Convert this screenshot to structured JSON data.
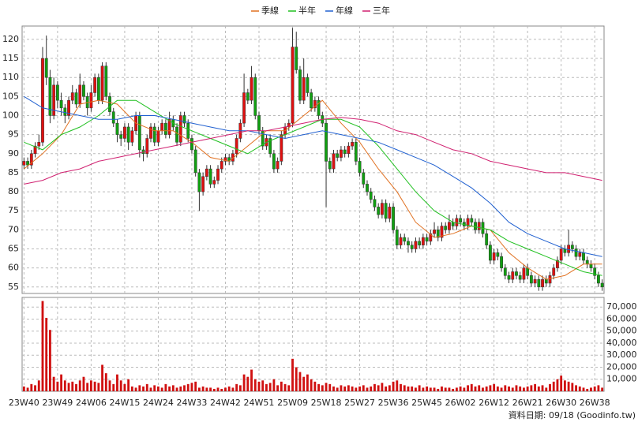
{
  "chart_data": {
    "type": "candlestick",
    "legend_position": "top",
    "grid": true,
    "footer": "資料日期: 09/18 (Goodinfo.tw)",
    "up_color": "#e01010",
    "down_color": "#10a010",
    "volume_color": "#d01010",
    "ylim": [
      53.3,
      123.5
    ],
    "yticks": [
      55,
      60,
      65,
      70,
      75,
      80,
      85,
      90,
      95,
      100,
      105,
      110,
      115,
      120
    ],
    "volume_ylim": [
      0,
      78000
    ],
    "volume_yticks": [
      {
        "value": 10000,
        "label": "10,000"
      },
      {
        "value": 20000,
        "label": "20,000"
      },
      {
        "value": 30000,
        "label": "30,000"
      },
      {
        "value": 40000,
        "label": "40,000"
      },
      {
        "value": 50000,
        "label": "50,000"
      },
      {
        "value": 60000,
        "label": "60,000"
      },
      {
        "value": 70000,
        "label": "70,000"
      }
    ],
    "xlim": [
      -0.5,
      155.5
    ],
    "xticks": [
      {
        "value": 0,
        "label": "23W40"
      },
      {
        "value": 9,
        "label": "23W49"
      },
      {
        "value": 18,
        "label": "24W06"
      },
      {
        "value": 27,
        "label": "24W15"
      },
      {
        "value": 36,
        "label": "24W24"
      },
      {
        "value": 45,
        "label": "24W33"
      },
      {
        "value": 54,
        "label": "24W42"
      },
      {
        "value": 63,
        "label": "24W51"
      },
      {
        "value": 72,
        "label": "25W09"
      },
      {
        "value": 81,
        "label": "25W18"
      },
      {
        "value": 90,
        "label": "25W27"
      },
      {
        "value": 99,
        "label": "25W36"
      },
      {
        "value": 108,
        "label": "25W45"
      },
      {
        "value": 117,
        "label": "26W02"
      },
      {
        "value": 126,
        "label": "26W12"
      },
      {
        "value": 135,
        "label": "26W21"
      },
      {
        "value": 144,
        "label": "26W30"
      },
      {
        "value": 153,
        "label": "26W38"
      }
    ],
    "ohlc": [
      [
        87,
        89,
        86,
        88
      ],
      [
        88,
        89,
        86,
        87
      ],
      [
        87,
        91,
        86,
        90
      ],
      [
        90,
        93,
        89,
        92
      ],
      [
        92,
        95,
        91,
        93
      ],
      [
        93,
        118,
        92,
        115
      ],
      [
        115,
        121,
        108,
        110
      ],
      [
        110,
        112,
        98,
        100
      ],
      [
        100,
        110,
        99,
        108
      ],
      [
        108,
        109,
        102,
        104
      ],
      [
        104,
        106,
        100,
        102
      ],
      [
        102,
        103,
        98,
        100
      ],
      [
        100,
        105,
        99,
        104
      ],
      [
        104,
        108,
        103,
        106
      ],
      [
        106,
        107,
        102,
        103
      ],
      [
        103,
        111,
        102,
        108
      ],
      [
        108,
        109,
        104,
        105
      ],
      [
        105,
        106,
        100,
        102
      ],
      [
        102,
        108,
        101,
        106
      ],
      [
        106,
        111,
        105,
        110
      ],
      [
        110,
        111,
        103,
        104
      ],
      [
        104,
        114,
        103,
        113
      ],
      [
        113,
        114,
        104,
        105
      ],
      [
        105,
        106,
        100,
        101
      ],
      [
        101,
        102,
        97,
        98
      ],
      [
        98,
        99,
        93,
        95
      ],
      [
        95,
        96,
        92,
        94
      ],
      [
        94,
        98,
        93,
        97
      ],
      [
        97,
        98,
        91,
        93
      ],
      [
        93,
        97,
        92,
        96
      ],
      [
        96,
        101,
        95,
        100
      ],
      [
        100,
        101,
        89,
        91
      ],
      [
        91,
        92,
        88,
        90
      ],
      [
        90,
        95,
        89,
        94
      ],
      [
        94,
        98,
        93,
        97
      ],
      [
        97,
        98,
        92,
        93
      ],
      [
        93,
        97,
        92,
        96
      ],
      [
        96,
        99,
        95,
        98
      ],
      [
        98,
        99,
        94,
        95
      ],
      [
        95,
        101,
        94,
        99
      ],
      [
        99,
        100,
        96,
        97
      ],
      [
        97,
        98,
        92,
        93
      ],
      [
        93,
        101,
        92,
        100
      ],
      [
        100,
        101,
        97,
        98
      ],
      [
        98,
        99,
        93,
        94
      ],
      [
        94,
        95,
        90,
        91
      ],
      [
        91,
        92,
        84,
        85
      ],
      [
        85,
        86,
        75,
        80
      ],
      [
        80,
        85,
        79,
        84
      ],
      [
        84,
        87,
        83,
        86
      ],
      [
        86,
        87,
        81,
        82
      ],
      [
        82,
        84,
        81,
        83
      ],
      [
        83,
        87,
        82,
        86
      ],
      [
        86,
        89,
        85,
        88
      ],
      [
        88,
        90,
        87,
        89
      ],
      [
        89,
        90,
        87,
        88
      ],
      [
        88,
        91,
        87,
        90
      ],
      [
        90,
        95,
        89,
        94
      ],
      [
        94,
        99,
        93,
        98
      ],
      [
        98,
        111,
        97,
        106
      ],
      [
        106,
        107,
        103,
        104
      ],
      [
        104,
        113,
        103,
        110
      ],
      [
        110,
        111,
        99,
        100
      ],
      [
        100,
        101,
        95,
        96
      ],
      [
        96,
        97,
        91,
        92
      ],
      [
        92,
        95,
        91,
        94
      ],
      [
        94,
        95,
        89,
        90
      ],
      [
        90,
        91,
        85,
        86
      ],
      [
        86,
        89,
        85,
        88
      ],
      [
        88,
        96,
        87,
        95
      ],
      [
        95,
        98,
        94,
        97
      ],
      [
        97,
        99,
        96,
        98
      ],
      [
        98,
        123,
        97,
        118
      ],
      [
        118,
        122,
        111,
        112
      ],
      [
        112,
        113,
        103,
        104
      ],
      [
        104,
        115,
        103,
        110
      ],
      [
        110,
        111,
        105,
        106
      ],
      [
        106,
        107,
        101,
        102
      ],
      [
        102,
        105,
        101,
        104
      ],
      [
        104,
        105,
        99,
        100
      ],
      [
        100,
        101,
        97,
        98
      ],
      [
        98,
        99,
        76,
        88
      ],
      [
        88,
        89,
        85,
        86
      ],
      [
        86,
        91,
        85,
        90
      ],
      [
        90,
        91,
        88,
        89
      ],
      [
        89,
        92,
        88,
        91
      ],
      [
        91,
        92,
        89,
        90
      ],
      [
        90,
        93,
        89,
        92
      ],
      [
        92,
        94,
        91,
        93
      ],
      [
        93,
        94,
        87,
        88
      ],
      [
        88,
        89,
        84,
        85
      ],
      [
        85,
        86,
        81,
        82
      ],
      [
        82,
        83,
        79,
        80
      ],
      [
        80,
        81,
        77,
        78
      ],
      [
        78,
        79,
        75,
        76
      ],
      [
        76,
        77,
        73,
        74
      ],
      [
        74,
        78,
        73,
        77
      ],
      [
        77,
        78,
        72,
        73
      ],
      [
        73,
        77,
        72,
        76
      ],
      [
        76,
        77,
        69,
        70
      ],
      [
        70,
        71,
        65,
        66
      ],
      [
        66,
        69,
        65,
        68
      ],
      [
        68,
        69,
        66,
        67
      ],
      [
        67,
        68,
        64,
        66
      ],
      [
        66,
        67,
        64,
        65
      ],
      [
        65,
        68,
        64,
        67
      ],
      [
        67,
        68,
        65,
        66
      ],
      [
        66,
        69,
        65,
        68
      ],
      [
        68,
        69,
        66,
        67
      ],
      [
        67,
        70,
        66,
        69
      ],
      [
        69,
        72,
        68,
        70
      ],
      [
        70,
        71,
        67,
        68
      ],
      [
        68,
        72,
        67,
        71
      ],
      [
        71,
        72,
        69,
        70
      ],
      [
        70,
        74,
        69,
        72
      ],
      [
        72,
        73,
        70,
        71
      ],
      [
        71,
        74,
        70,
        73
      ],
      [
        73,
        74,
        71,
        72
      ],
      [
        72,
        73,
        70,
        71
      ],
      [
        71,
        74,
        70,
        73
      ],
      [
        73,
        74,
        71,
        72
      ],
      [
        72,
        73,
        69,
        70
      ],
      [
        70,
        73,
        69,
        72
      ],
      [
        72,
        73,
        68,
        69
      ],
      [
        69,
        70,
        65,
        66
      ],
      [
        66,
        67,
        61,
        62
      ],
      [
        62,
        65,
        61,
        64
      ],
      [
        64,
        65,
        62,
        63
      ],
      [
        63,
        64,
        59,
        60
      ],
      [
        60,
        61,
        57,
        58
      ],
      [
        58,
        59,
        56,
        57
      ],
      [
        57,
        60,
        56,
        59
      ],
      [
        59,
        60,
        57,
        58
      ],
      [
        58,
        59,
        56,
        57
      ],
      [
        57,
        61,
        56,
        60
      ],
      [
        60,
        61,
        57,
        58
      ],
      [
        58,
        59,
        55,
        56
      ],
      [
        56,
        58,
        55,
        57
      ],
      [
        57,
        58,
        54,
        55
      ],
      [
        55,
        58,
        54,
        57
      ],
      [
        57,
        58,
        55,
        56
      ],
      [
        56,
        59,
        55,
        58
      ],
      [
        58,
        61,
        57,
        60
      ],
      [
        60,
        63,
        59,
        62
      ],
      [
        62,
        66,
        61,
        65
      ],
      [
        65,
        66,
        63,
        64
      ],
      [
        64,
        70,
        63,
        66
      ],
      [
        66,
        67,
        64,
        65
      ],
      [
        65,
        66,
        62,
        63
      ],
      [
        63,
        65,
        62,
        64
      ],
      [
        64,
        65,
        61,
        62
      ],
      [
        62,
        63,
        60,
        61
      ],
      [
        61,
        62,
        59,
        60
      ],
      [
        60,
        61,
        57,
        58
      ],
      [
        58,
        59,
        55,
        56
      ],
      [
        56,
        57,
        54,
        55
      ]
    ],
    "volume": [
      4000,
      3000,
      6000,
      5000,
      9000,
      75000,
      61000,
      51000,
      12000,
      8000,
      14000,
      9000,
      7000,
      8000,
      6000,
      9000,
      12000,
      7000,
      9000,
      8000,
      7000,
      22000,
      15000,
      9000,
      6000,
      14000,
      9000,
      6000,
      10000,
      4000,
      3000,
      5000,
      4000,
      6000,
      3000,
      5000,
      4000,
      3000,
      6000,
      4000,
      5000,
      3000,
      4000,
      5000,
      6000,
      7000,
      8000,
      3000,
      4000,
      3000,
      3000,
      2000,
      3000,
      2000,
      3000,
      4000,
      3000,
      6000,
      5000,
      14000,
      12000,
      18000,
      10000,
      8000,
      9000,
      6000,
      7000,
      10000,
      5000,
      8000,
      6000,
      5000,
      27000,
      20000,
      16000,
      12000,
      14000,
      10000,
      8000,
      6000,
      5000,
      7000,
      6000,
      4000,
      3000,
      5000,
      4000,
      5000,
      4000,
      3000,
      4000,
      5000,
      3000,
      4000,
      6000,
      5000,
      7000,
      4000,
      5000,
      8000,
      9000,
      6000,
      5000,
      4000,
      4000,
      3000,
      5000,
      3000,
      4000,
      3000,
      3000,
      2000,
      4000,
      3000,
      3000,
      2000,
      3000,
      4000,
      3000,
      5000,
      6000,
      4000,
      5000,
      3000,
      4000,
      5000,
      6000,
      4000,
      3000,
      5000,
      4000,
      3000,
      5000,
      4000,
      3000,
      4000,
      5000,
      6000,
      4000,
      5000,
      3000,
      6000,
      8000,
      10000,
      13000,
      9000,
      8000,
      7000,
      5000,
      4000,
      3000,
      2000,
      3000,
      4000,
      5000,
      3000
    ],
    "ma_x": [
      0,
      5,
      10,
      15,
      20,
      25,
      30,
      35,
      40,
      45,
      50,
      55,
      60,
      65,
      70,
      75,
      80,
      85,
      90,
      95,
      100,
      105,
      110,
      115,
      120,
      125,
      130,
      135,
      140,
      145,
      150,
      155
    ],
    "series": [
      {
        "name": "季線",
        "color": "#e07020",
        "values": [
          86,
          90,
          95,
          103,
          104,
          103,
          98,
          96,
          96,
          93,
          89,
          88,
          92,
          96,
          96,
          100,
          104,
          98,
          93,
          86,
          80,
          72,
          68,
          69,
          71,
          70,
          64,
          60,
          57,
          58,
          61,
          61
        ]
      },
      {
        "name": "半年",
        "color": "#20c020",
        "values": [
          93,
          91,
          95,
          97,
          100,
          104,
          104,
          101,
          98,
          96,
          94,
          92,
          90,
          93,
          95,
          97,
          99,
          99,
          97,
          92,
          86,
          80,
          75,
          72,
          71,
          70,
          67,
          65,
          63,
          61,
          59,
          58
        ]
      },
      {
        "name": "年線",
        "color": "#2060d0",
        "values": [
          105,
          102,
          101,
          100,
          99,
          99,
          100,
          100,
          99,
          98,
          97,
          96,
          96,
          95,
          94,
          95,
          96,
          95,
          94,
          93,
          91,
          89,
          87,
          84,
          81,
          77,
          72,
          69,
          67,
          65,
          64,
          63
        ]
      },
      {
        "name": "三年",
        "color": "#d02070",
        "values": [
          82,
          83,
          85,
          86,
          88,
          89,
          90,
          91,
          92,
          93,
          94,
          95,
          96,
          96,
          97,
          98,
          99,
          99.5,
          99,
          98,
          96,
          95,
          93,
          91,
          90,
          88,
          87,
          86,
          85,
          85,
          84,
          83
        ]
      }
    ]
  }
}
